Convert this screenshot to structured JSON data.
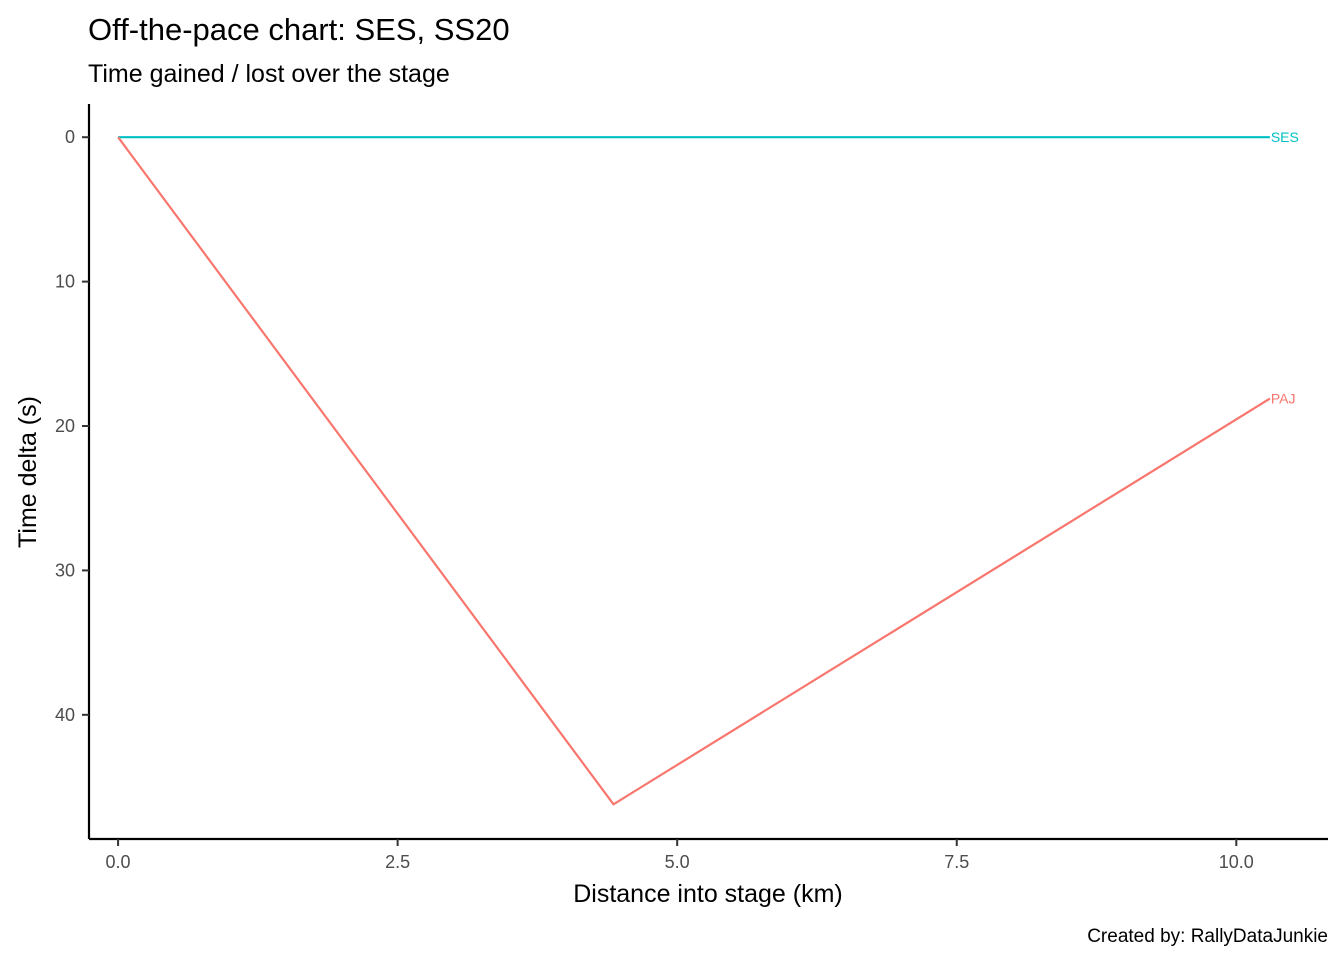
{
  "chart_data": {
    "type": "line",
    "title": "Off-the-pace chart: SES, SS20",
    "subtitle": "Time gained / lost over the stage",
    "xlabel": "Distance into stage (km)",
    "ylabel": "Time delta (s)",
    "caption": "Created by: RallyDataJunkie",
    "xlim": [
      -0.26,
      10.82
    ],
    "ylim": [
      -2.3,
      48.6
    ],
    "y_reversed": true,
    "x_ticks": [
      0,
      2.5,
      5,
      7.5,
      10
    ],
    "x_tick_labels": [
      "0.0",
      "2.5",
      "5.0",
      "7.5",
      "10.0"
    ],
    "y_ticks": [
      0,
      10,
      20,
      30,
      40
    ],
    "y_tick_labels": [
      "0",
      "10",
      "20",
      "30",
      "40"
    ],
    "grid": false,
    "legend": "none",
    "series": [
      {
        "name": "SES",
        "color": "#00BFC4",
        "x": [
          0,
          10.3
        ],
        "y": [
          0,
          0
        ]
      },
      {
        "name": "PAJ",
        "color": "#F8766D",
        "x": [
          0,
          4.43,
          10.3
        ],
        "y": [
          0,
          46.2,
          18.1
        ]
      }
    ]
  }
}
